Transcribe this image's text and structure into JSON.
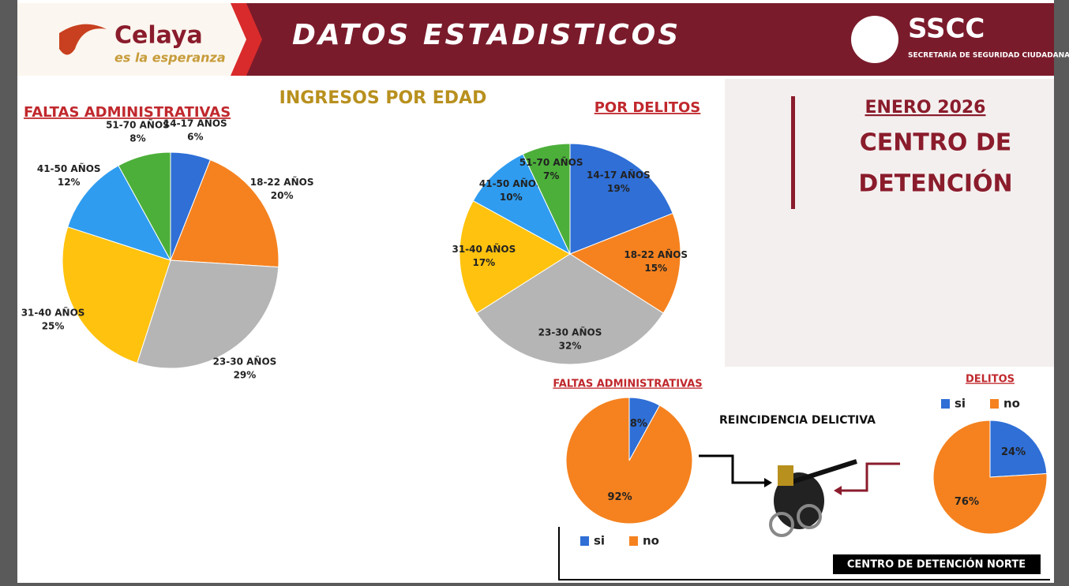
{
  "header": {
    "logo_name": "Celaya",
    "logo_tagline": "es la esperanza",
    "title": "DATOS ESTADISTICOS",
    "agency_short": "SSCC",
    "agency_name": "SECRETARÍA DE SEGURIDAD CIUDADANA CELAYA"
  },
  "section_title": "INGRESOS POR EDAD",
  "side_panel": {
    "period": "ENERO 2026",
    "heading_1": "CENTRO DE",
    "heading_2": "DETENCIÓN"
  },
  "reincidence_title": "REINCIDENCIA DELICTIVA",
  "footer_label": "CENTRO DE DETENCIÓN NORTE",
  "chart_data": [
    {
      "type": "pie",
      "title": "FALTAS ADMINISTRATIVAS",
      "categories": [
        "14-17 AÑOS",
        "18-22 AÑOS",
        "23-30 AÑOS",
        "31-40 AÑOS",
        "41-50 AÑOS",
        "51-70 AÑOS"
      ],
      "values": [
        6,
        20,
        29,
        25,
        12,
        8
      ],
      "value_labels": [
        "6%",
        "20%",
        "29%",
        "25%",
        "12%",
        "8%"
      ],
      "colors": [
        "#2f6fd6",
        "#f5821f",
        "#b5b5b5",
        "#ffc20e",
        "#2f9cf0",
        "#4caf3a"
      ]
    },
    {
      "type": "pie",
      "title": "POR DELITOS",
      "categories": [
        "14-17 AÑOS",
        "18-22 AÑOS",
        "23-30 AÑOS",
        "31-40 AÑOS",
        "41-50 AÑOS",
        "51-70 AÑOS"
      ],
      "values": [
        19,
        15,
        32,
        17,
        10,
        7
      ],
      "value_labels": [
        "19%",
        "15%",
        "32%",
        "17%",
        "10%",
        "7%"
      ],
      "colors": [
        "#2f6fd6",
        "#f5821f",
        "#b5b5b5",
        "#ffc20e",
        "#2f9cf0",
        "#4caf3a"
      ]
    },
    {
      "type": "pie",
      "title": "FALTAS ADMINISTRATIVAS",
      "categories": [
        "si",
        "no"
      ],
      "values": [
        8,
        92
      ],
      "value_labels": [
        "8%",
        "92%"
      ],
      "colors": [
        "#2f6fd6",
        "#f5821f"
      ],
      "legend": "bottom"
    },
    {
      "type": "pie",
      "title": "DELITOS",
      "categories": [
        "si",
        "no"
      ],
      "values": [
        24,
        76
      ],
      "value_labels": [
        "24%",
        "76%"
      ],
      "colors": [
        "#2f6fd6",
        "#f5821f"
      ],
      "legend": "top"
    }
  ]
}
